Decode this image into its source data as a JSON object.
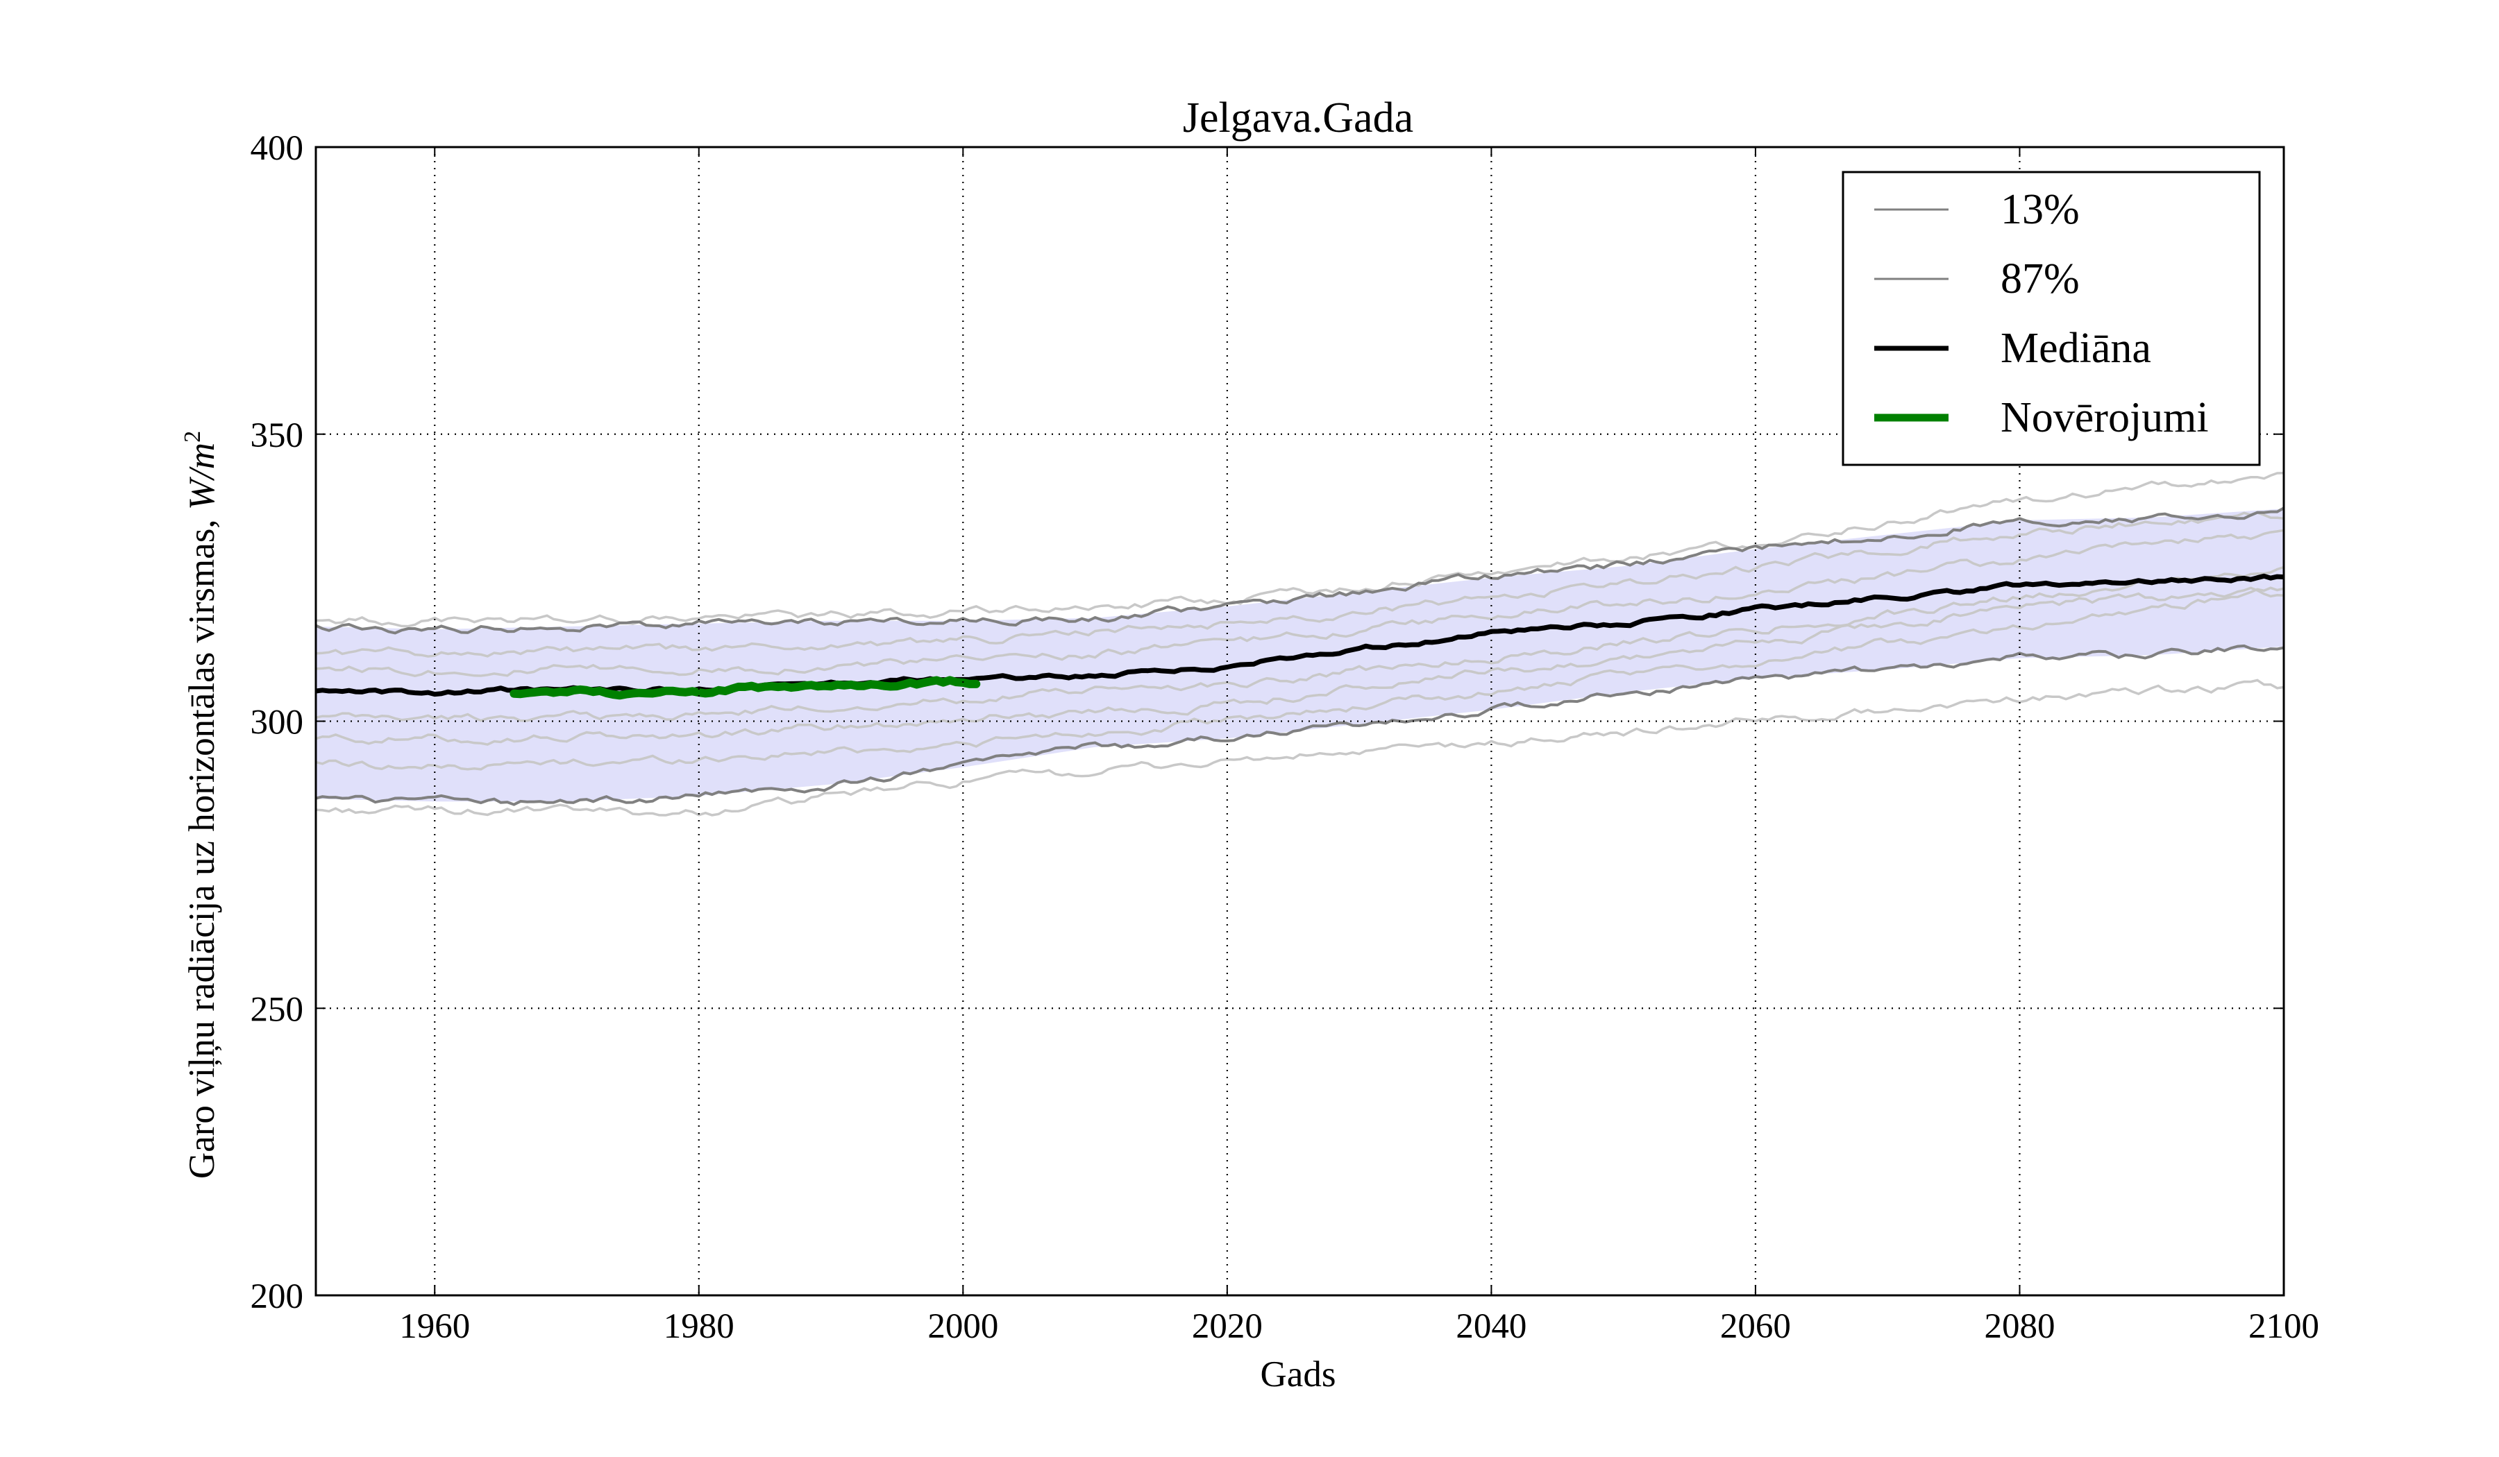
{
  "chart_data": {
    "type": "line",
    "title": "Jelgava.Gada",
    "xlabel": "Gads",
    "ylabel_prefix": "Garo viļņu radiācija uz horizontālas virsmas, ",
    "ylabel_unit_base": "W/m",
    "ylabel_unit_exp": "2",
    "xlim": [
      1951,
      2100
    ],
    "ylim": [
      200,
      400
    ],
    "xticks": [
      1960,
      1980,
      2000,
      2020,
      2040,
      2060,
      2080,
      2100
    ],
    "yticks": [
      200,
      250,
      300,
      350,
      400
    ],
    "grid": true,
    "legend_position": "top-right",
    "colors": {
      "band": "#e0e0fa",
      "percentile": "#808080",
      "ensemble": "#c8c8c8",
      "median": "#000000",
      "observations": "#008000"
    },
    "band": {
      "x": [
        1951,
        1960,
        1970,
        1980,
        1990,
        2000,
        2010,
        2020,
        2030,
        2040,
        2050,
        2060,
        2070,
        2080,
        2090,
        2100
      ],
      "lower": [
        286.5,
        286,
        286,
        287,
        289,
        292,
        295.5,
        297,
        299.5,
        302,
        305,
        307.5,
        309,
        311,
        311.5,
        313
      ],
      "upper": [
        316.5,
        316,
        316.5,
        317,
        317.5,
        317.5,
        318,
        320,
        322.5,
        325,
        327,
        330,
        332.5,
        335,
        335.5,
        337
      ]
    },
    "series": [
      {
        "name": "13%",
        "role": "percentile",
        "x": [
          1951,
          1960,
          1970,
          1980,
          1990,
          2000,
          2010,
          2020,
          2030,
          2040,
          2050,
          2060,
          2070,
          2080,
          2090,
          2100
        ],
        "values": [
          286.5,
          286,
          286,
          287,
          289,
          292,
          295.5,
          297,
          299.5,
          302,
          305,
          307.5,
          309,
          311,
          311.5,
          313
        ]
      },
      {
        "name": "87%",
        "role": "percentile",
        "x": [
          1951,
          1960,
          1970,
          1980,
          1990,
          2000,
          2010,
          2020,
          2030,
          2040,
          2050,
          2060,
          2070,
          2080,
          2090,
          2100
        ],
        "values": [
          316.5,
          316,
          316.5,
          317,
          317.5,
          317.5,
          318,
          320,
          322.5,
          325,
          327,
          330,
          332.5,
          335,
          335.5,
          337
        ]
      },
      {
        "name": "Mediāna",
        "role": "median",
        "x": [
          1951,
          1960,
          1970,
          1980,
          1990,
          2000,
          2010,
          2020,
          2030,
          2040,
          2050,
          2060,
          2070,
          2080,
          2090,
          2100
        ],
        "values": [
          305,
          305,
          305.5,
          305.5,
          306.5,
          307.5,
          308,
          309.5,
          312.5,
          315.5,
          317,
          319.5,
          321.5,
          323.5,
          324.5,
          325
        ]
      },
      {
        "name": "Novērojumi",
        "role": "observations",
        "x": [
          1966,
          1970,
          1975,
          1980,
          1985,
          1990,
          1995,
          2001
        ],
        "values": [
          305,
          305,
          305,
          305.5,
          306,
          306,
          306.5,
          307
        ]
      }
    ],
    "ensemble_members": [
      {
        "x": [
          1951,
          1960,
          1980,
          2000,
          2020,
          2040,
          2060,
          2080,
          2100
        ],
        "values": [
          284.5,
          284.5,
          284,
          289.5,
          293,
          296,
          300,
          304,
          306
        ]
      },
      {
        "x": [
          1951,
          1960,
          1980,
          2000,
          2020,
          2040,
          2060,
          2080,
          2100
        ],
        "values": [
          293,
          292,
          293.5,
          296,
          300,
          305,
          310.5,
          316.5,
          323
        ]
      },
      {
        "x": [
          1951,
          1960,
          1980,
          2000,
          2020,
          2040,
          2060,
          2080,
          2100
        ],
        "values": [
          297,
          297,
          297.5,
          300.5,
          303,
          308.5,
          313.5,
          320,
          322.5
        ]
      },
      {
        "x": [
          1951,
          1960,
          1980,
          2000,
          2020,
          2040,
          2060,
          2080,
          2100
        ],
        "values": [
          300.5,
          300.5,
          301,
          304,
          306.5,
          311,
          316,
          321.5,
          327
        ]
      },
      {
        "x": [
          1951,
          1960,
          1980,
          2000,
          2020,
          2040,
          2060,
          2080,
          2100
        ],
        "values": [
          309.5,
          309,
          309,
          310.5,
          313.5,
          318.5,
          322.5,
          328,
          333
        ]
      },
      {
        "x": [
          1951,
          1960,
          1980,
          2000,
          2020,
          2040,
          2060,
          2080,
          2100
        ],
        "values": [
          312,
          312,
          312.5,
          314,
          317,
          321.5,
          326.5,
          333,
          336
        ]
      },
      {
        "x": [
          1951,
          1960,
          1980,
          2000,
          2020,
          2040,
          2060,
          2080,
          2100
        ],
        "values": [
          317.5,
          317.5,
          318,
          319,
          321,
          326,
          331,
          338.5,
          342.5
        ]
      }
    ]
  }
}
